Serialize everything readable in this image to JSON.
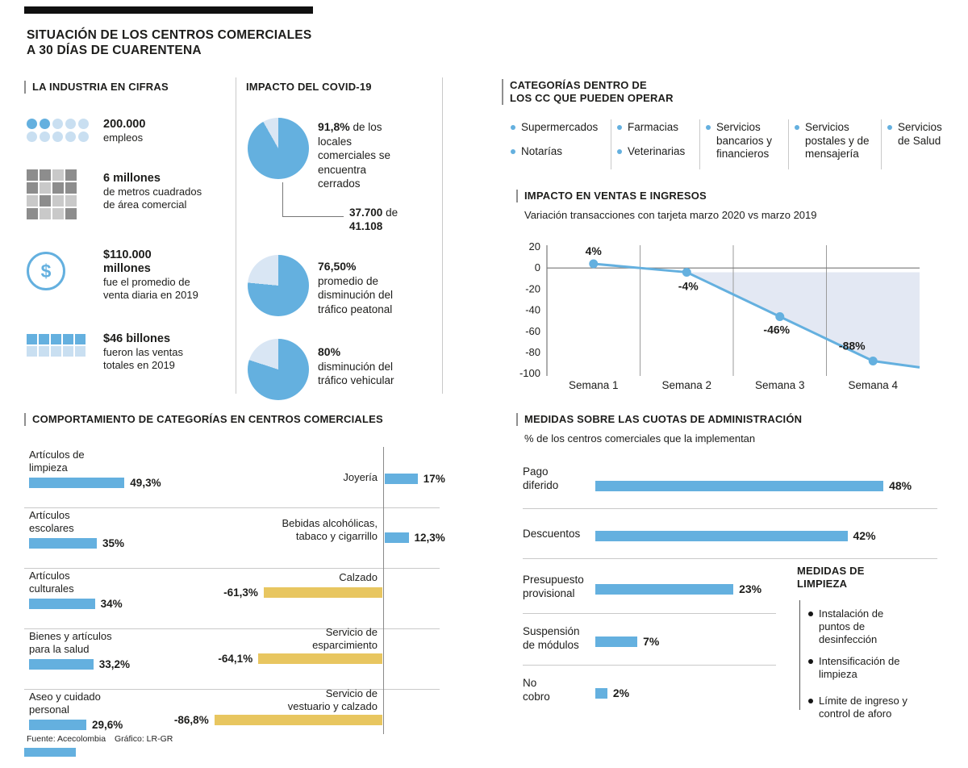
{
  "title": {
    "line1": "SITUACIÓN DE LOS CENTROS COMERCIALES",
    "line2": "A 30 DÍAS DE CUARENTENA"
  },
  "colors": {
    "blue": "#64b0df",
    "pie_rest": "#d9e6f4",
    "icon_light_blue": "#c9dff1",
    "yellow": "#e8c660",
    "area_fill": "#e3e8f3",
    "grid_gray": "#9b9b9b",
    "ink": "#1d1d1b",
    "line_gray": "#c9c9c9"
  },
  "industria": {
    "header": "LA INDUSTRIA EN CIFRAS",
    "stats": [
      {
        "icon": "employees-dots-icon",
        "bold": "200.000",
        "lines": [
          "empleos"
        ]
      },
      {
        "icon": "area-grid-icon",
        "bold": "6 millones",
        "lines": [
          "de metros cuadrados",
          "de área comercial"
        ]
      },
      {
        "icon": "dollar-circle-icon",
        "glyph": "$",
        "bold": "$110.000 millones",
        "lines": [
          "fue el promedio de",
          "venta diaria en 2019"
        ]
      },
      {
        "icon": "sales-bricks-icon",
        "bold": "$46 billones",
        "lines": [
          "fueron las ventas",
          "totales en 2019"
        ]
      }
    ]
  },
  "covid": {
    "header": "IMPACTO DEL COVID-19",
    "pies": [
      {
        "value_label": "91,8%",
        "text": "de los locales comerciales se encuentra cerrados",
        "note": {
          "bold1": "37.700",
          "mid": "de",
          "bold2": "41.108"
        }
      },
      {
        "value_label": "76,50%",
        "text": "promedio de disminución del tráfico peatonal"
      },
      {
        "value_label": "80%",
        "text": "disminución del tráfico vehicular"
      }
    ]
  },
  "categorias": {
    "header_line1": "CATEGORÍAS DENTRO DE",
    "header_line2": "LOS CC QUE PUEDEN OPERAR",
    "columns": [
      {
        "items": [
          "Supermercados",
          "Notarías"
        ]
      },
      {
        "items": [
          "Farmacias",
          "Veterinarias"
        ]
      },
      {
        "items": [
          "Servicios bancarios y financieros"
        ]
      },
      {
        "items": [
          "Servicios postales y de mensajería"
        ]
      },
      {
        "items": [
          "Servicios de Salud"
        ]
      }
    ]
  },
  "ventas": {
    "header": "IMPACTO EN VENTAS E INGRESOS",
    "subtitle": "Variación transacciones con tarjeta marzo 2020 vs marzo 2019"
  },
  "comportamiento": {
    "header": "COMPORTAMIENTO DE CATEGORÍAS EN CENTROS COMERCIALES",
    "left_rows": [
      {
        "label_lines": [
          "Artículos de",
          "limpieza"
        ],
        "value_label": "49,3%"
      },
      {
        "label_lines": [
          "Artículos",
          "escolares"
        ],
        "value_label": "35%"
      },
      {
        "label_lines": [
          "Artículos",
          "culturales"
        ],
        "value_label": "34%"
      },
      {
        "label_lines": [
          "Bienes y artículos",
          "para la salud"
        ],
        "value_label": "33,2%"
      },
      {
        "label_lines": [
          "Aseo y cuidado",
          "personal"
        ],
        "value_label": "29,6%"
      }
    ],
    "right_rows": [
      {
        "label_lines": [
          "Joyería"
        ],
        "value_label": "17%"
      },
      {
        "label_lines": [
          "Bebidas alcohólicas,",
          "tabaco y cigarrillo"
        ],
        "value_label": "12,3%"
      },
      {
        "label_lines": [
          "Calzado"
        ],
        "value_label": "-61,3%"
      },
      {
        "label_lines": [
          "Servicio de",
          "esparcimiento"
        ],
        "value_label": "-64,1%"
      },
      {
        "label_lines": [
          "Servicio de",
          "vestuario y calzado"
        ],
        "value_label": "-86,8%"
      }
    ]
  },
  "medidas": {
    "header": "MEDIDAS SOBRE LAS CUOTAS DE ADMINISTRACIÓN",
    "subtitle": "% de los centros comerciales que la implementan",
    "rows": [
      {
        "label_lines": [
          "Pago",
          "diferido"
        ],
        "value_label": "48%"
      },
      {
        "label_lines": [
          "Descuentos"
        ],
        "value_label": "42%"
      },
      {
        "label_lines": [
          "Presupuesto",
          "provisional"
        ],
        "value_label": "23%"
      },
      {
        "label_lines": [
          "Suspensión",
          "de módulos"
        ],
        "value_label": "7%"
      },
      {
        "label_lines": [
          "No",
          "cobro"
        ],
        "value_label": "2%"
      }
    ]
  },
  "limpieza": {
    "header_line1": "MEDIDAS DE",
    "header_line2": "LIMPIEZA",
    "items": [
      [
        "Instalación de",
        "puntos de",
        "desinfección"
      ],
      [
        "Intensificación de",
        "limpieza"
      ],
      [
        "Límite de ingreso y",
        "control de aforo"
      ]
    ]
  },
  "footer": {
    "source": "Fuente: Acecolombia",
    "credit": "Gráfico: LR-GR"
  },
  "chart_data": [
    {
      "type": "pie",
      "title": "Locales comerciales cerrados",
      "labels": [
        "Cerrados",
        "Abiertos"
      ],
      "values": [
        91.8,
        8.2
      ],
      "annotation": "37.700 de 41.108"
    },
    {
      "type": "pie",
      "title": "Promedio de disminución del tráfico peatonal",
      "labels": [
        "Disminución",
        "Resto"
      ],
      "values": [
        76.5,
        23.5
      ]
    },
    {
      "type": "pie",
      "title": "Disminución del tráfico vehicular",
      "labels": [
        "Disminución",
        "Resto"
      ],
      "values": [
        80,
        20
      ]
    },
    {
      "type": "line",
      "title": "Variación transacciones con tarjeta marzo 2020 vs marzo 2019",
      "categories": [
        "Semana 1",
        "Semana 2",
        "Semana 3",
        "Semana 4"
      ],
      "values": [
        4,
        -4,
        -46,
        -88
      ],
      "point_labels": [
        "4%",
        "-4%",
        "-46%",
        "-88%"
      ],
      "yticks": [
        20,
        0,
        -20,
        -40,
        -60,
        -80,
        -100
      ],
      "ylim": [
        -100,
        20
      ],
      "unit": "%",
      "grid": true,
      "legend": false
    },
    {
      "type": "bar",
      "title": "Comportamiento de categorías en centros comerciales",
      "categories": [
        "Artículos de limpieza",
        "Artículos escolares",
        "Artículos culturales",
        "Bienes y artículos para la salud",
        "Aseo y cuidado personal",
        "Joyería",
        "Bebidas alcohólicas, tabaco y cigarrillo",
        "Calzado",
        "Servicio de esparcimiento",
        "Servicio de vestuario y calzado"
      ],
      "values": [
        49.3,
        35,
        34,
        33.2,
        29.6,
        17,
        12.3,
        -61.3,
        -64.1,
        -86.8
      ],
      "unit": "%"
    },
    {
      "type": "bar",
      "title": "Medidas sobre las cuotas de administración",
      "categories": [
        "Pago diferido",
        "Descuentos",
        "Presupuesto provisional",
        "Suspensión de módulos",
        "No cobro"
      ],
      "values": [
        48,
        42,
        23,
        7,
        2
      ],
      "unit": "%"
    }
  ]
}
